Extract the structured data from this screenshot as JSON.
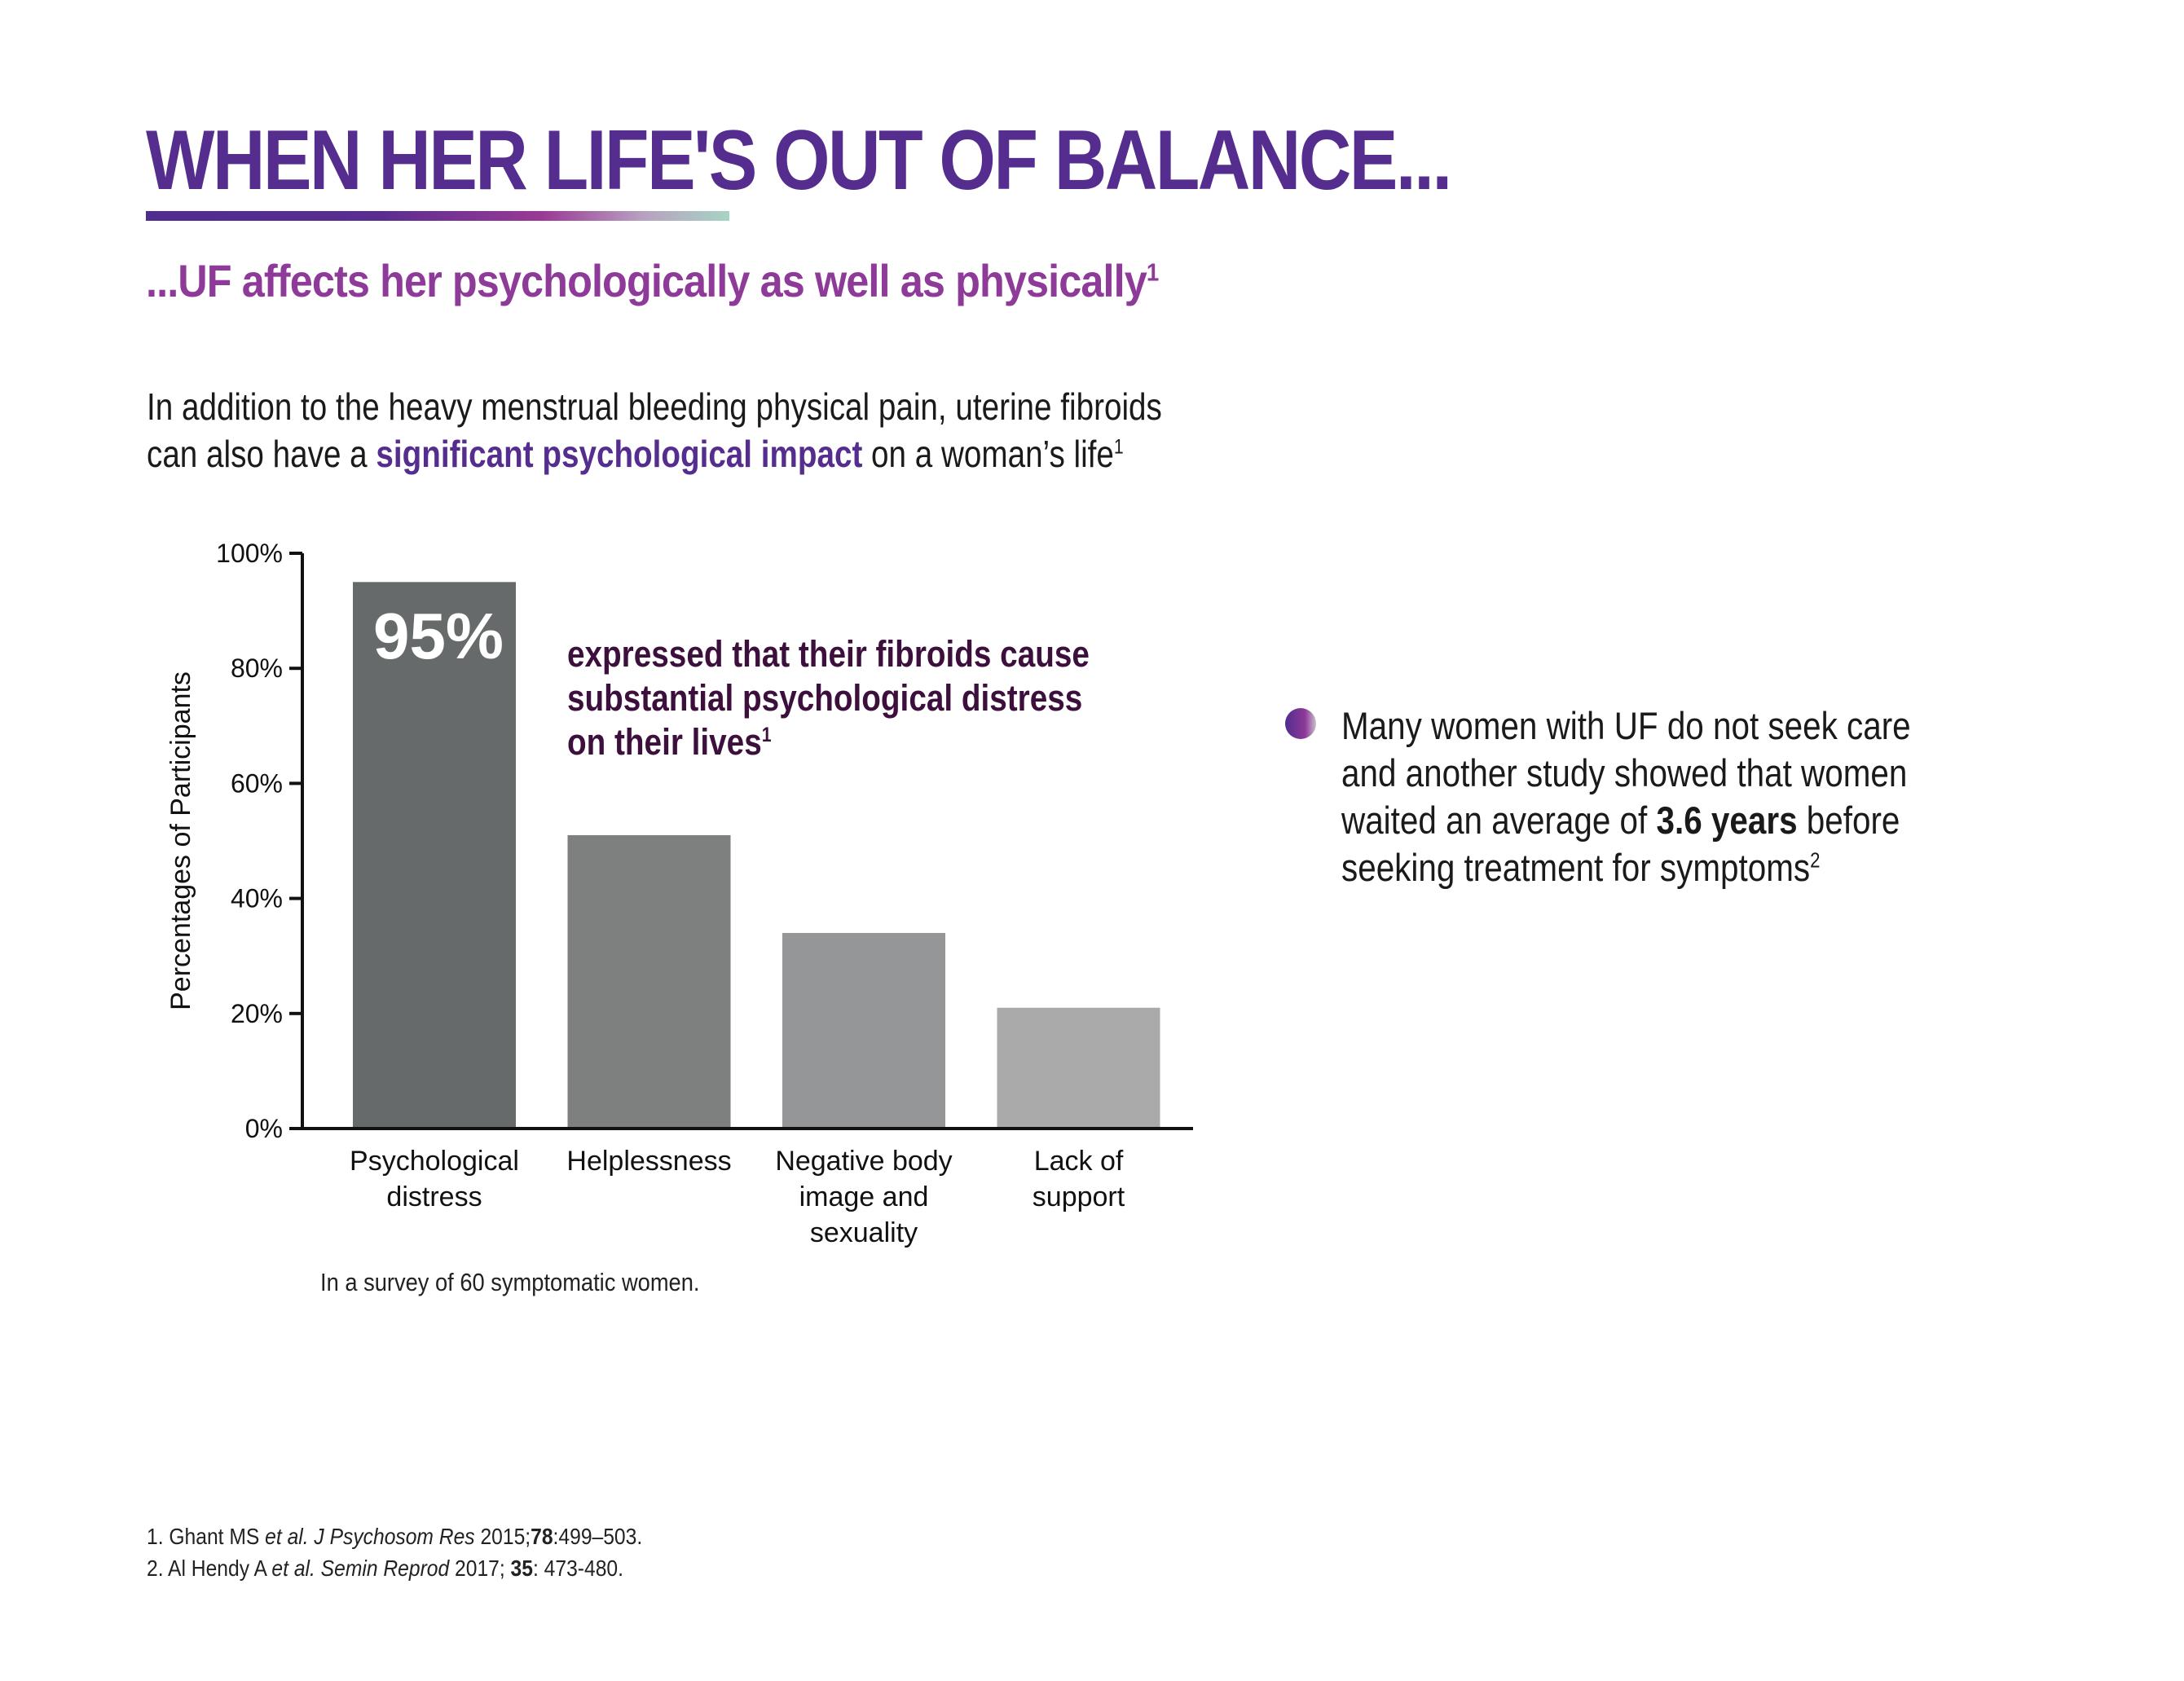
{
  "title": "WHEN HER LIFE'S OUT OF BALANCE...",
  "subtitle": {
    "text": "...UF affects her psychologically as well as physically",
    "sup": "1"
  },
  "intro": {
    "line1": "In addition to the heavy menstrual bleeding physical pain, uterine fibroids",
    "line2_pre": "can also have a ",
    "line2_bold": "significant psychological impact",
    "line2_post": " on a woman’s life",
    "sup": "1"
  },
  "colors": {
    "title": "#552d8f",
    "subtitle": "#8e3a98",
    "annotation": "#3d0f3d",
    "bars": [
      "#676a6b",
      "#7e8080",
      "#959697",
      "#aaaaab"
    ]
  },
  "chart_data": {
    "type": "bar",
    "ylabel": "Percentages of Participants",
    "xlabel": "",
    "ylim": [
      0,
      100
    ],
    "yticks": [
      "0%",
      "20%",
      "40%",
      "60%",
      "80%",
      "100%"
    ],
    "categories": [
      [
        "Psychological",
        "distress"
      ],
      [
        "Helplessness"
      ],
      [
        "Negative body",
        "image and",
        "sexuality"
      ],
      [
        "Lack of",
        "support"
      ]
    ],
    "values": [
      95,
      51,
      34,
      21
    ],
    "data_label": "95%",
    "grid": false,
    "annotation": {
      "line1": "expressed that their fibroids cause",
      "line2": "substantial psychological distress",
      "line3": "on their lives",
      "sup": "1"
    }
  },
  "survey_note": "In a survey of 60 symptomatic women.",
  "bullet": {
    "icon": "gradient-circle-bullet",
    "line1": "Many women with UF do not seek care",
    "line2": "and another study showed that women",
    "line3_pre": "waited an average of ",
    "line3_bold": "3.6 years",
    "line3_post": " before",
    "line4": "seeking treatment for symptoms",
    "sup": "2"
  },
  "references": [
    {
      "pre": "1. Ghant MS ",
      "italic": "et al. J Psychosom Res",
      "mid": " 2015;",
      "bold": "78",
      "post": ":499–503."
    },
    {
      "pre": "2. Al Hendy A ",
      "italic": "et al. Semin Reprod",
      "mid": " 2017; ",
      "bold": "35",
      "post": ": 473-480."
    }
  ]
}
